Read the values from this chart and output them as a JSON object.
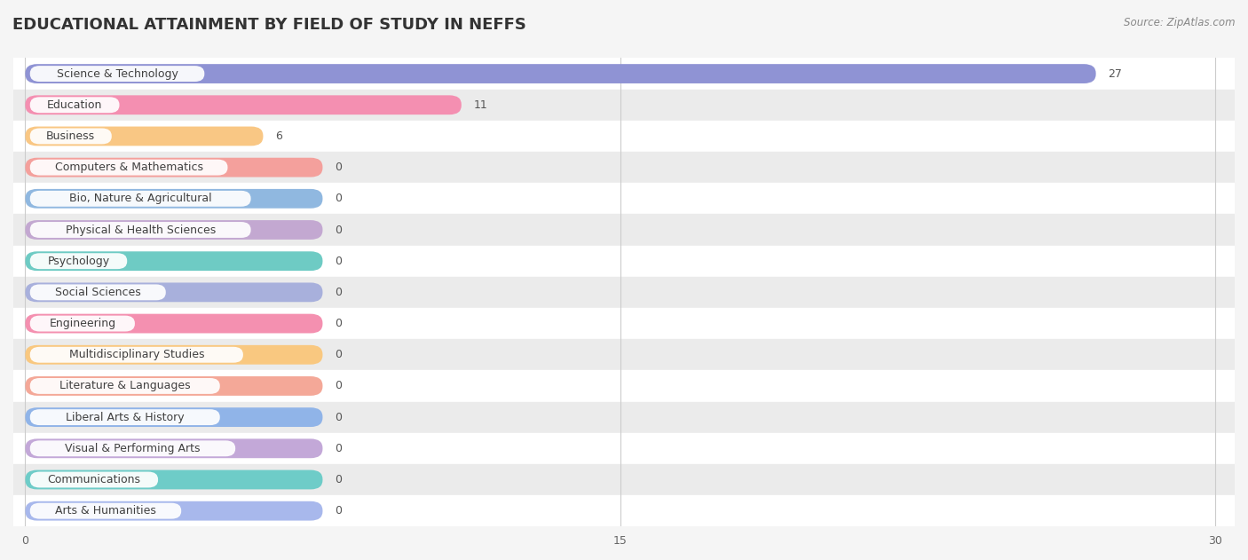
{
  "title": "EDUCATIONAL ATTAINMENT BY FIELD OF STUDY IN NEFFS",
  "source": "Source: ZipAtlas.com",
  "categories": [
    "Science & Technology",
    "Education",
    "Business",
    "Computers & Mathematics",
    "Bio, Nature & Agricultural",
    "Physical & Health Sciences",
    "Psychology",
    "Social Sciences",
    "Engineering",
    "Multidisciplinary Studies",
    "Literature & Languages",
    "Liberal Arts & History",
    "Visual & Performing Arts",
    "Communications",
    "Arts & Humanities"
  ],
  "values": [
    27,
    11,
    6,
    0,
    0,
    0,
    0,
    0,
    0,
    0,
    0,
    0,
    0,
    0,
    0
  ],
  "bar_colors": [
    "#8F93D4",
    "#F48FB1",
    "#F9C784",
    "#F4A09C",
    "#90B8E0",
    "#C3A8D1",
    "#6ECBC4",
    "#A8B0DC",
    "#F490B0",
    "#F9C880",
    "#F4A898",
    "#90B4E8",
    "#C3A8D8",
    "#6ECCC8",
    "#A8B8EC"
  ],
  "xlim": [
    0,
    30
  ],
  "xticks": [
    0,
    15,
    30
  ],
  "background_color": "#f5f5f5",
  "title_fontsize": 13,
  "bar_height": 0.62,
  "zero_bar_width": 7.5
}
